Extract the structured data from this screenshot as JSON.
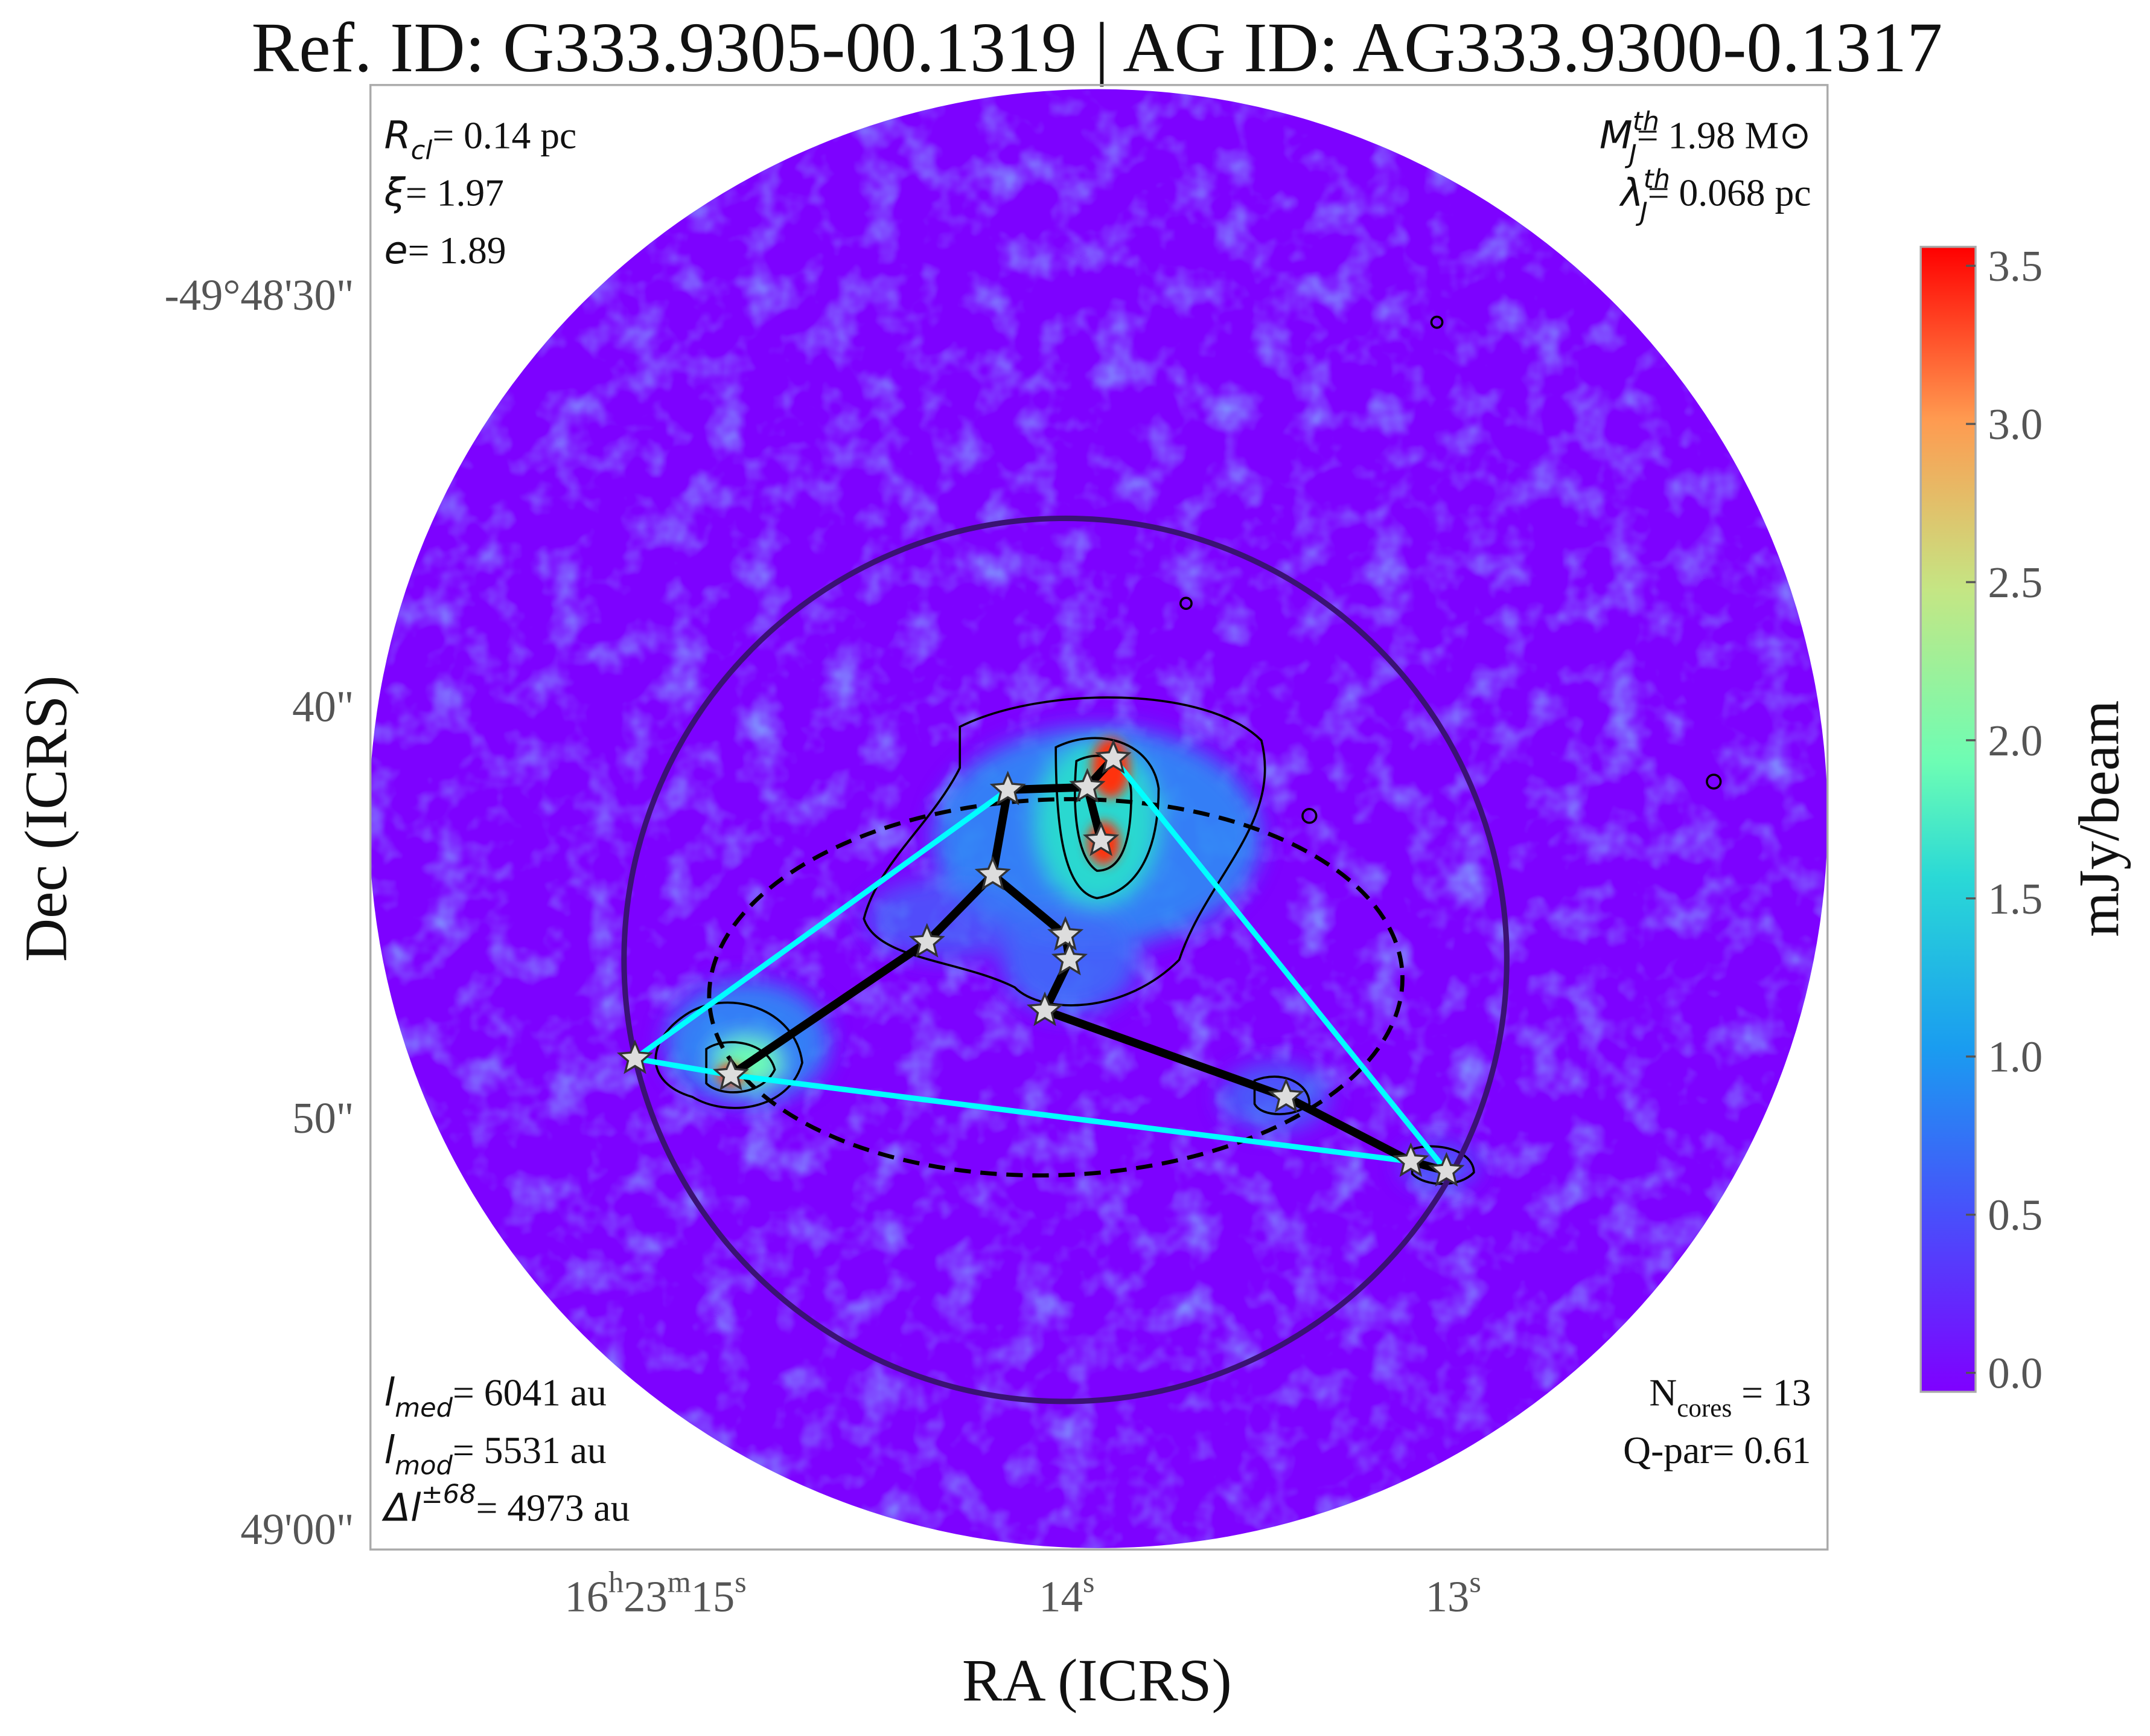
{
  "title": "Ref. ID: G333.9305-00.1319 | AG ID: AG333.9300-0.1317",
  "x_axis": {
    "label": "RA (ICRS)",
    "ticks": [
      [
        "16",
        "h",
        "23",
        "m",
        "15",
        "s"
      ],
      [
        "14",
        "s"
      ],
      [
        "13",
        "s"
      ]
    ]
  },
  "y_axis": {
    "label": "Dec (ICRS)",
    "ticks": [
      "-49°48'30\"",
      "40\"",
      "50\"",
      "49'00\""
    ]
  },
  "top_left": [
    {
      "symbol": "R",
      "sub": "cl",
      "rest": "= 0.14 pc"
    },
    {
      "symbol": "ξ",
      "rest": "= 1.97"
    },
    {
      "symbol": "e",
      "rest": "= 1.89"
    }
  ],
  "top_right": [
    {
      "symbol": "M",
      "sup": "th",
      "sub": "J",
      "rest": "= 1.98 M⊙"
    },
    {
      "symbol": "λ",
      "sup": "th",
      "sub": "J",
      "rest": "= 0.068 pc"
    }
  ],
  "bottom_left": [
    {
      "symbol": "l",
      "sub": "med",
      "rest": "= 6041 au"
    },
    {
      "symbol": "l",
      "sub": "mod",
      "rest": "= 5531 au"
    },
    {
      "symbol": "Δl",
      "sup": "±68",
      "rest": "= 4973 au"
    }
  ],
  "bottom_right": [
    {
      "symbol": "N",
      "sub": "cores",
      "rest": " = 13"
    },
    {
      "symbol": "Q-par",
      "rest": "= 0.61"
    }
  ],
  "colorbar": {
    "label": "mJy/beam",
    "lim": [
      -0.06,
      3.56
    ],
    "ticks": [
      {
        "value": 0,
        "label": "0.0"
      },
      {
        "value": 0.5,
        "label": "0.5"
      },
      {
        "value": 1,
        "label": "1.0"
      },
      {
        "value": 1.5,
        "label": "1.5"
      },
      {
        "value": 2,
        "label": "2.0"
      },
      {
        "value": 2.5,
        "label": "2.5"
      },
      {
        "value": 3,
        "label": "3.0"
      },
      {
        "value": 3.5,
        "label": "3.5"
      }
    ]
  }
}
